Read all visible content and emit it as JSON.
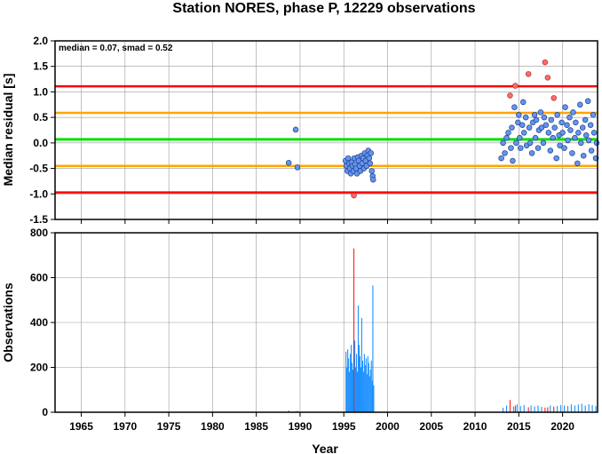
{
  "chart_data": [
    {
      "type": "scatter",
      "title": "Station NORES, phase P, 12229 observations",
      "annotation": "median = 0.07, smad = 0.52",
      "xlabel": "",
      "ylabel": "Median residual [s]",
      "xlim": [
        1962,
        2024
      ],
      "ylim": [
        -1.5,
        2.0
      ],
      "yticks": [
        "2.0",
        "1.5",
        "1.0",
        "0.5",
        "0.0",
        "-0.5",
        "-1.0",
        "-1.5"
      ],
      "ytick_values": [
        2.0,
        1.5,
        1.0,
        0.5,
        0.0,
        -0.5,
        -1.0,
        -1.5
      ],
      "grid": true,
      "colors": {
        "normal": "#6495ED",
        "outlier": "#FF6A6A",
        "median": "#00E000",
        "band": "#FFA500",
        "limit": "#FF0000"
      },
      "reference_lines": [
        {
          "role": "median",
          "y": 0.07,
          "color": "#00E000"
        },
        {
          "role": "band",
          "y": 0.59,
          "color": "#FFA500"
        },
        {
          "role": "band",
          "y": -0.45,
          "color": "#FFA500"
        },
        {
          "role": "limit",
          "y": 1.11,
          "color": "#FF0000"
        },
        {
          "role": "limit",
          "y": -0.97,
          "color": "#FF0000"
        }
      ],
      "points": [
        [
          1988.7,
          -0.39,
          0
        ],
        [
          1989.5,
          0.26,
          0
        ],
        [
          1989.7,
          -0.48,
          0
        ],
        [
          1995.2,
          -0.35,
          0
        ],
        [
          1995.3,
          -0.45,
          0
        ],
        [
          1995.4,
          -0.55,
          0
        ],
        [
          1995.5,
          -0.3,
          0
        ],
        [
          1995.6,
          -0.4,
          0
        ],
        [
          1995.7,
          -0.5,
          0
        ],
        [
          1995.8,
          -0.6,
          0
        ],
        [
          1995.9,
          -0.38,
          0
        ],
        [
          1996.0,
          -0.45,
          0
        ],
        [
          1996.1,
          -0.55,
          0
        ],
        [
          1996.15,
          -1.03,
          1
        ],
        [
          1996.2,
          -0.3,
          0
        ],
        [
          1996.3,
          -0.42,
          0
        ],
        [
          1996.4,
          -0.5,
          0
        ],
        [
          1996.5,
          -0.6,
          0
        ],
        [
          1996.6,
          -0.28,
          0
        ],
        [
          1996.7,
          -0.35,
          0
        ],
        [
          1996.8,
          -0.45,
          0
        ],
        [
          1996.9,
          -0.55,
          0
        ],
        [
          1997.0,
          -0.25,
          0
        ],
        [
          1997.1,
          -0.4,
          0
        ],
        [
          1997.2,
          -0.3,
          0
        ],
        [
          1997.3,
          -0.5,
          0
        ],
        [
          1997.4,
          -0.2,
          0
        ],
        [
          1997.5,
          -0.35,
          0
        ],
        [
          1997.6,
          -0.45,
          0
        ],
        [
          1997.7,
          -0.25,
          0
        ],
        [
          1997.8,
          -0.15,
          0
        ],
        [
          1997.9,
          -0.3,
          0
        ],
        [
          1998.0,
          -0.4,
          0
        ],
        [
          1998.1,
          -0.2,
          0
        ],
        [
          1998.2,
          -0.55,
          0
        ],
        [
          1998.3,
          -0.65,
          0
        ],
        [
          1998.35,
          -0.72,
          0
        ],
        [
          2013.0,
          -0.3,
          0
        ],
        [
          2013.2,
          0.0,
          0
        ],
        [
          2013.4,
          -0.2,
          0
        ],
        [
          2013.6,
          0.1,
          0
        ],
        [
          2013.8,
          0.2,
          0
        ],
        [
          2014.0,
          0.93,
          1
        ],
        [
          2014.1,
          -0.1,
          0
        ],
        [
          2014.2,
          0.3,
          0
        ],
        [
          2014.3,
          -0.35,
          0
        ],
        [
          2014.5,
          0.7,
          0
        ],
        [
          2014.6,
          1.12,
          1
        ],
        [
          2014.7,
          0.0,
          0
        ],
        [
          2014.9,
          0.4,
          0
        ],
        [
          2015.0,
          0.55,
          0
        ],
        [
          2015.1,
          0.1,
          0
        ],
        [
          2015.2,
          -0.1,
          0
        ],
        [
          2015.4,
          0.35,
          0
        ],
        [
          2015.5,
          0.8,
          0
        ],
        [
          2015.6,
          0.2,
          0
        ],
        [
          2015.8,
          0.5,
          0
        ],
        [
          2015.9,
          -0.05,
          0
        ],
        [
          2016.1,
          1.35,
          1
        ],
        [
          2016.2,
          0.3,
          0
        ],
        [
          2016.3,
          0.0,
          0
        ],
        [
          2016.5,
          -0.2,
          0
        ],
        [
          2016.6,
          0.4,
          0
        ],
        [
          2016.8,
          0.55,
          0
        ],
        [
          2016.9,
          0.1,
          0
        ],
        [
          2017.0,
          0.45,
          0
        ],
        [
          2017.2,
          -0.1,
          0
        ],
        [
          2017.3,
          0.25,
          0
        ],
        [
          2017.5,
          0.6,
          0
        ],
        [
          2017.6,
          0.3,
          0
        ],
        [
          2017.8,
          0.0,
          0
        ],
        [
          2017.9,
          0.5,
          0
        ],
        [
          2018.0,
          1.58,
          1
        ],
        [
          2018.1,
          0.35,
          0
        ],
        [
          2018.3,
          1.28,
          1
        ],
        [
          2018.4,
          0.2,
          0
        ],
        [
          2018.6,
          -0.15,
          0
        ],
        [
          2018.7,
          0.45,
          0
        ],
        [
          2018.9,
          0.1,
          0
        ],
        [
          2019.0,
          0.88,
          1
        ],
        [
          2019.1,
          0.3,
          0
        ],
        [
          2019.3,
          -0.3,
          0
        ],
        [
          2019.4,
          0.55,
          0
        ],
        [
          2019.6,
          0.15,
          0
        ],
        [
          2019.7,
          -0.05,
          0
        ],
        [
          2019.9,
          0.4,
          0
        ],
        [
          2020.0,
          0.2,
          0
        ],
        [
          2020.2,
          -0.1,
          0
        ],
        [
          2020.3,
          0.7,
          0
        ],
        [
          2020.5,
          0.35,
          0
        ],
        [
          2020.6,
          0.05,
          0
        ],
        [
          2020.8,
          0.5,
          0
        ],
        [
          2020.9,
          0.25,
          0
        ],
        [
          2021.1,
          -0.2,
          0
        ],
        [
          2021.2,
          0.6,
          0
        ],
        [
          2021.4,
          0.1,
          0
        ],
        [
          2021.5,
          0.4,
          0
        ],
        [
          2021.7,
          -0.4,
          0
        ],
        [
          2021.8,
          0.2,
          0
        ],
        [
          2022.0,
          0.75,
          0
        ],
        [
          2022.1,
          0.0,
          0
        ],
        [
          2022.3,
          0.3,
          0
        ],
        [
          2022.4,
          -0.25,
          0
        ],
        [
          2022.6,
          0.45,
          0
        ],
        [
          2022.7,
          0.15,
          0
        ],
        [
          2022.9,
          0.82,
          0
        ],
        [
          2023.0,
          0.05,
          0
        ],
        [
          2023.2,
          0.35,
          0
        ],
        [
          2023.3,
          -0.15,
          0
        ],
        [
          2023.5,
          0.55,
          0
        ],
        [
          2023.6,
          0.2,
          0
        ],
        [
          2023.8,
          -0.3,
          0
        ],
        [
          2023.9,
          0.0,
          0
        ]
      ]
    },
    {
      "type": "bar",
      "xlabel": "Year",
      "ylabel": "Observations",
      "xlim": [
        1962,
        2024
      ],
      "ylim": [
        0,
        800
      ],
      "xticks": [
        "1965",
        "1970",
        "1975",
        "1980",
        "1985",
        "1990",
        "1995",
        "2000",
        "2005",
        "2010",
        "2015",
        "2020"
      ],
      "xtick_values": [
        1965,
        1970,
        1975,
        1980,
        1985,
        1990,
        1995,
        2000,
        2005,
        2010,
        2015,
        2020
      ],
      "yticks": [
        "800",
        "600",
        "400",
        "200",
        "0"
      ],
      "ytick_values": [
        800,
        600,
        400,
        200,
        0
      ],
      "grid": true,
      "colors": {
        "normal": "#1E90FF",
        "outlier": "#FF2020"
      },
      "bars": [
        [
          1988.7,
          8,
          0
        ],
        [
          1989.5,
          5,
          0
        ],
        [
          1989.7,
          6,
          0
        ],
        [
          1995.25,
          270,
          0
        ],
        [
          1995.35,
          200,
          0
        ],
        [
          1995.45,
          280,
          0
        ],
        [
          1995.55,
          240,
          0
        ],
        [
          1995.65,
          180,
          0
        ],
        [
          1995.75,
          260,
          0
        ],
        [
          1995.85,
          300,
          0
        ],
        [
          1995.95,
          220,
          0
        ],
        [
          1996.05,
          190,
          0
        ],
        [
          1996.15,
          730,
          1
        ],
        [
          1996.25,
          320,
          0
        ],
        [
          1996.35,
          200,
          0
        ],
        [
          1996.45,
          260,
          0
        ],
        [
          1996.55,
          180,
          0
        ],
        [
          1996.65,
          475,
          0
        ],
        [
          1996.75,
          300,
          0
        ],
        [
          1996.85,
          250,
          0
        ],
        [
          1996.95,
          200,
          0
        ],
        [
          1997.05,
          420,
          0
        ],
        [
          1997.15,
          230,
          0
        ],
        [
          1997.25,
          180,
          0
        ],
        [
          1997.35,
          260,
          0
        ],
        [
          1997.45,
          210,
          0
        ],
        [
          1997.55,
          240,
          0
        ],
        [
          1997.65,
          170,
          0
        ],
        [
          1997.75,
          250,
          0
        ],
        [
          1997.85,
          220,
          0
        ],
        [
          1997.95,
          160,
          0
        ],
        [
          1998.05,
          190,
          0
        ],
        [
          1998.15,
          230,
          0
        ],
        [
          1998.25,
          140,
          0
        ],
        [
          1998.32,
          565,
          0
        ],
        [
          1998.42,
          120,
          0
        ],
        [
          2013.2,
          20,
          0
        ],
        [
          2013.6,
          30,
          0
        ],
        [
          2014.0,
          55,
          1
        ],
        [
          2014.4,
          25,
          0
        ],
        [
          2014.6,
          30,
          1
        ],
        [
          2014.8,
          35,
          0
        ],
        [
          2015.2,
          28,
          0
        ],
        [
          2015.6,
          32,
          0
        ],
        [
          2016.1,
          22,
          1
        ],
        [
          2016.4,
          30,
          0
        ],
        [
          2016.8,
          26,
          0
        ],
        [
          2017.2,
          30,
          0
        ],
        [
          2017.6,
          24,
          0
        ],
        [
          2018.0,
          20,
          1
        ],
        [
          2018.3,
          22,
          1
        ],
        [
          2018.6,
          30,
          0
        ],
        [
          2019.0,
          25,
          1
        ],
        [
          2019.4,
          28,
          0
        ],
        [
          2019.8,
          32,
          0
        ],
        [
          2020.2,
          30,
          0
        ],
        [
          2020.6,
          28,
          0
        ],
        [
          2021.0,
          35,
          0
        ],
        [
          2021.4,
          30,
          0
        ],
        [
          2021.8,
          34,
          0
        ],
        [
          2022.2,
          38,
          0
        ],
        [
          2022.6,
          30,
          0
        ],
        [
          2023.0,
          36,
          0
        ],
        [
          2023.4,
          32,
          0
        ],
        [
          2023.8,
          28,
          0
        ]
      ]
    }
  ]
}
